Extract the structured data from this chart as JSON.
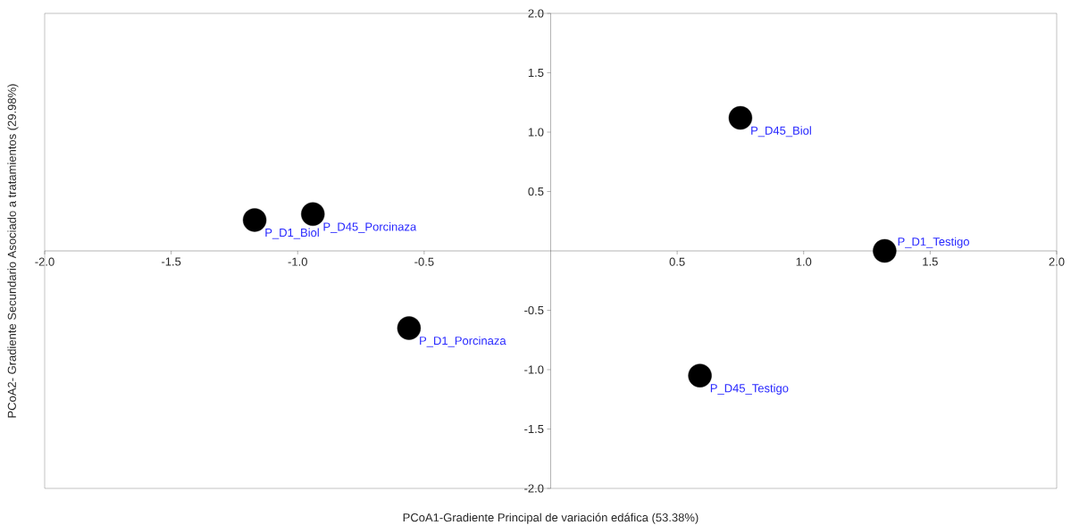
{
  "chart_data": {
    "type": "scatter",
    "xlabel": "PCoA1-Gradiente Principal de variación edáfica (53.38%)",
    "ylabel": "PCoA2- Gradiente Secundario Asociado a tratamientos (29.98%)",
    "series": [
      {
        "color": "#000000",
        "x": [
          -1.17,
          -0.94,
          -0.56,
          0.75,
          0.59,
          1.32
        ],
        "values": [
          0.26,
          0.31,
          -0.65,
          1.12,
          -1.05,
          0.0
        ]
      }
    ],
    "annotations": [
      {
        "text": "P_D1_Biol",
        "x": -1.17,
        "y": 0.26
      },
      {
        "text": "P_D45_Porcinaza",
        "x": -0.94,
        "y": 0.31
      },
      {
        "text": "P_D1_Porcinaza",
        "x": -0.56,
        "y": -0.65
      },
      {
        "text": "P_D45_Biol",
        "x": 0.75,
        "y": 1.12
      },
      {
        "text": "P_D45_Testigo",
        "x": 0.59,
        "y": -1.05
      },
      {
        "text": "P_D1_Testigo",
        "x": 1.32,
        "y": 0.0
      }
    ],
    "xlim": [
      -2,
      2
    ],
    "ylim": [
      -2,
      2
    ],
    "xticks": [
      {
        "value": -2,
        "label": "-2.0"
      },
      -1.5,
      {
        "value": -1,
        "label": "-1.0"
      },
      -0.5,
      0.5,
      {
        "value": 1,
        "label": "1.0"
      },
      1.5,
      {
        "value": 2,
        "label": "2.0"
      }
    ],
    "yticks": [
      {
        "value": -2,
        "label": "-2.0"
      },
      -1.5,
      {
        "value": -1,
        "label": "-1.0"
      },
      -0.5,
      0.5,
      {
        "value": 1,
        "label": "1.0"
      },
      1.5,
      {
        "value": 2,
        "label": "2.0"
      }
    ],
    "marker": "circle"
  }
}
